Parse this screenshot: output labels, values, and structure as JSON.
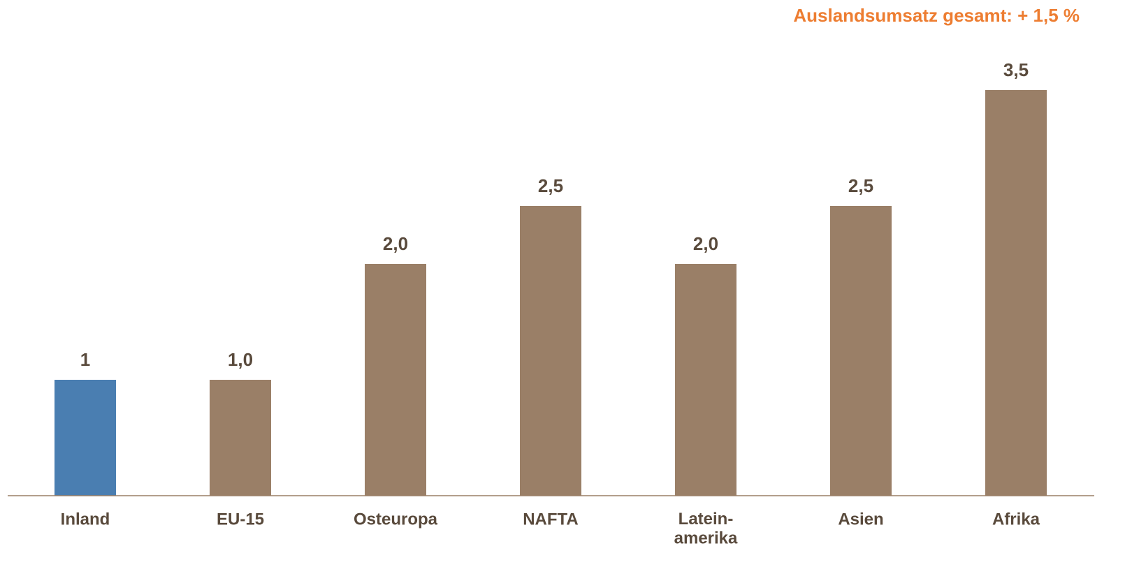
{
  "chart_data": {
    "type": "bar",
    "categories": [
      "Inland",
      "EU-15",
      "Osteuropa",
      "NAFTA",
      "Latein-\namerika",
      "Asien",
      "Afrika"
    ],
    "values": [
      1,
      1.0,
      2.0,
      2.5,
      2.0,
      2.5,
      3.5
    ],
    "value_labels": [
      "1",
      "1,0",
      "2,0",
      "2,5",
      "2,0",
      "2,5",
      "3,5"
    ],
    "colors": [
      "#4a7eb1",
      "#9a7f67",
      "#9a7f67",
      "#9a7f67",
      "#9a7f67",
      "#9a7f67",
      "#9a7f67"
    ],
    "ylim": [
      0,
      3.5
    ],
    "reference_line": {
      "value": 1.5,
      "label": "Auslandsumsatz gesamt: + 1,5 %",
      "color": "#ed7d31"
    }
  }
}
